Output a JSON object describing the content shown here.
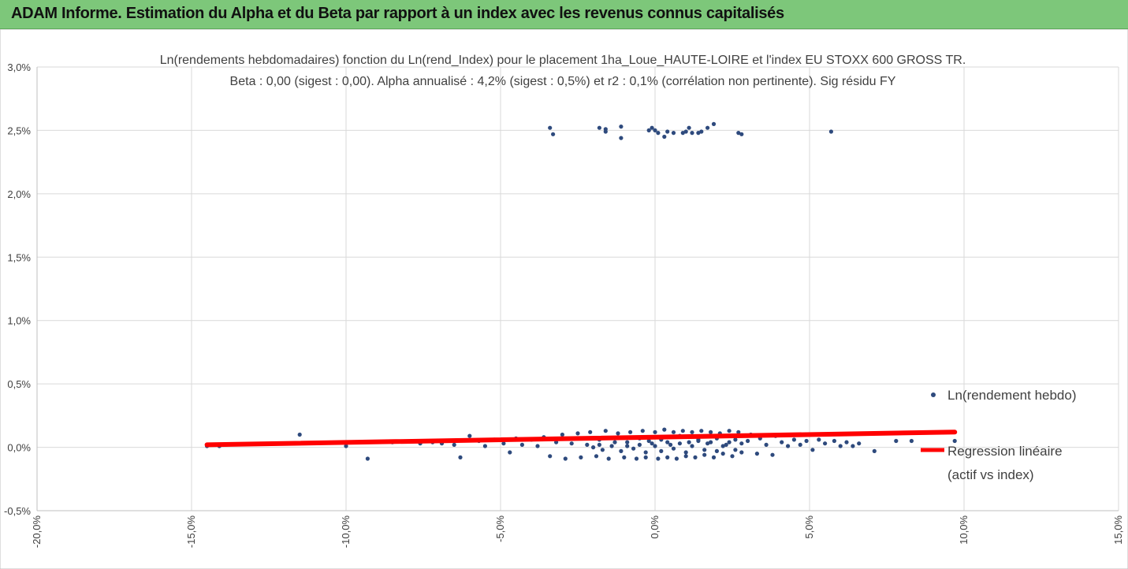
{
  "header": {
    "title": "ADAM Informe. Estimation du Alpha et du Beta par rapport à un index avec les revenus connus capitalisés"
  },
  "colors": {
    "header_bg": "#7dc77a",
    "points": "#2e4a7d",
    "regression": "#ff0000",
    "grid": "#d9d9d9"
  },
  "chart_data": {
    "type": "scatter",
    "title_line1": "Ln(rendements hebdomadaires) fonction du Ln(rend_Index) pour le placement 1ha_Loue_HAUTE-LOIRE et l'index EU STOXX 600 GROSS TR.",
    "title_line2": "Beta : 0,00 (sigest : 0,00). Alpha annualisé : 4,2% (sigest : 0,5%) et r2 : 0,1% (corrélation non pertinente). Sig résidu FY",
    "xlim": [
      -0.2,
      0.15
    ],
    "ylim": [
      -0.005,
      0.03
    ],
    "x_ticks": [
      "-20,0%",
      "-15,0%",
      "-10,0%",
      "-5,0%",
      "0,0%",
      "5,0%",
      "10,0%",
      "15,0%"
    ],
    "y_ticks": [
      "3,0%",
      "2,5%",
      "2,0%",
      "1,5%",
      "1,0%",
      "0,5%",
      "0,0%",
      "-0,5%"
    ],
    "grid": true,
    "legend_position": "right",
    "legend": [
      {
        "label": "Ln(rendement hebdo)",
        "type": "marker"
      },
      {
        "label_line1": "Regression linéaire",
        "label_line2": "(actif vs index)",
        "type": "line"
      }
    ],
    "regression": {
      "x": [
        -0.145,
        0.097
      ],
      "y": [
        0.0002,
        0.0012
      ]
    },
    "series": [
      {
        "name": "Ln(rendement hebdo)",
        "points": [
          [
            -0.034,
            0.0252
          ],
          [
            -0.033,
            0.0247
          ],
          [
            -0.018,
            0.0252
          ],
          [
            -0.016,
            0.0249
          ],
          [
            -0.016,
            0.0251
          ],
          [
            -0.011,
            0.0253
          ],
          [
            -0.011,
            0.0244
          ],
          [
            -0.002,
            0.025
          ],
          [
            -0.001,
            0.0252
          ],
          [
            0.0,
            0.025
          ],
          [
            0.001,
            0.0248
          ],
          [
            0.003,
            0.0245
          ],
          [
            0.004,
            0.0249
          ],
          [
            0.006,
            0.0248
          ],
          [
            0.009,
            0.0248
          ],
          [
            0.01,
            0.0249
          ],
          [
            0.011,
            0.0252
          ],
          [
            0.012,
            0.0248
          ],
          [
            0.014,
            0.0248
          ],
          [
            0.015,
            0.0249
          ],
          [
            0.017,
            0.0252
          ],
          [
            0.019,
            0.0255
          ],
          [
            0.027,
            0.0248
          ],
          [
            0.028,
            0.0247
          ],
          [
            0.057,
            0.0249
          ],
          [
            -0.145,
            0.0001
          ],
          [
            -0.141,
            0.0001
          ],
          [
            -0.115,
            0.001
          ],
          [
            -0.1,
            0.0001
          ],
          [
            -0.093,
            -0.0009
          ],
          [
            -0.085,
            0.0004
          ],
          [
            -0.076,
            0.0003
          ],
          [
            -0.072,
            0.0004
          ],
          [
            -0.069,
            0.0003
          ],
          [
            -0.066,
            0.0005
          ],
          [
            -0.065,
            0.0002
          ],
          [
            -0.063,
            -0.0008
          ],
          [
            -0.06,
            0.0009
          ],
          [
            -0.057,
            0.0005
          ],
          [
            -0.055,
            0.0001
          ],
          [
            -0.052,
            0.0006
          ],
          [
            -0.049,
            0.0003
          ],
          [
            -0.047,
            -0.0004
          ],
          [
            -0.045,
            0.0007
          ],
          [
            -0.043,
            0.0002
          ],
          [
            -0.04,
            0.0006
          ],
          [
            -0.038,
            0.0001
          ],
          [
            -0.036,
            0.0008
          ],
          [
            -0.034,
            -0.0007
          ],
          [
            -0.032,
            0.0004
          ],
          [
            -0.03,
            0.001
          ],
          [
            -0.029,
            -0.0009
          ],
          [
            -0.027,
            0.0003
          ],
          [
            -0.025,
            0.0011
          ],
          [
            -0.024,
            -0.0008
          ],
          [
            -0.022,
            0.0002
          ],
          [
            -0.021,
            0.0012
          ],
          [
            -0.019,
            -0.0007
          ],
          [
            -0.018,
            0.0006
          ],
          [
            -0.016,
            0.0013
          ],
          [
            -0.015,
            -0.0009
          ],
          [
            -0.013,
            0.0004
          ],
          [
            -0.012,
            0.0011
          ],
          [
            -0.01,
            -0.0008
          ],
          [
            -0.009,
            0.0001
          ],
          [
            -0.008,
            0.0012
          ],
          [
            -0.006,
            -0.0009
          ],
          [
            -0.005,
            0.0007
          ],
          [
            -0.004,
            0.0013
          ],
          [
            -0.003,
            -0.0008
          ],
          [
            -0.001,
            0.0003
          ],
          [
            0.0,
            0.0012
          ],
          [
            0.001,
            -0.0009
          ],
          [
            0.002,
            0.0006
          ],
          [
            0.003,
            0.0014
          ],
          [
            0.004,
            -0.0008
          ],
          [
            0.005,
            0.0002
          ],
          [
            0.006,
            0.0012
          ],
          [
            0.007,
            -0.0009
          ],
          [
            0.008,
            0.0009
          ],
          [
            0.009,
            0.0013
          ],
          [
            0.01,
            -0.0007
          ],
          [
            0.011,
            0.0004
          ],
          [
            0.012,
            0.0012
          ],
          [
            0.013,
            -0.0008
          ],
          [
            0.014,
            0.0005
          ],
          [
            0.015,
            0.0013
          ],
          [
            0.016,
            -0.0006
          ],
          [
            0.017,
            0.0003
          ],
          [
            0.018,
            0.0012
          ],
          [
            0.019,
            -0.0008
          ],
          [
            0.02,
            0.0007
          ],
          [
            0.021,
            0.0011
          ],
          [
            0.022,
            -0.0005
          ],
          [
            0.023,
            0.0002
          ],
          [
            0.024,
            0.0013
          ],
          [
            0.025,
            -0.0007
          ],
          [
            0.026,
            0.0006
          ],
          [
            0.027,
            0.0012
          ],
          [
            0.028,
            -0.0004
          ],
          [
            0.03,
            0.0005
          ],
          [
            0.031,
            0.001
          ],
          [
            0.033,
            -0.0005
          ],
          [
            0.034,
            0.0007
          ],
          [
            0.036,
            0.0002
          ],
          [
            0.038,
            -0.0006
          ],
          [
            0.039,
            0.0009
          ],
          [
            0.041,
            0.0004
          ],
          [
            0.043,
            0.0001
          ],
          [
            0.045,
            0.0006
          ],
          [
            0.047,
            0.0002
          ],
          [
            0.049,
            0.0005
          ],
          [
            0.051,
            -0.0002
          ],
          [
            0.053,
            0.0006
          ],
          [
            0.055,
            0.0003
          ],
          [
            0.058,
            0.0005
          ],
          [
            0.06,
            0.0001
          ],
          [
            0.062,
            0.0004
          ],
          [
            0.064,
            0.0001
          ],
          [
            0.066,
            0.0003
          ],
          [
            0.071,
            -0.0003
          ],
          [
            0.078,
            0.0005
          ],
          [
            0.083,
            0.0005
          ],
          [
            0.097,
            0.0005
          ],
          [
            -0.02,
            0.0
          ],
          [
            -0.018,
            0.0002
          ],
          [
            -0.017,
            -0.0002
          ],
          [
            -0.014,
            0.0001
          ],
          [
            -0.011,
            -0.0003
          ],
          [
            -0.009,
            0.0004
          ],
          [
            -0.007,
            -0.0001
          ],
          [
            -0.005,
            0.0002
          ],
          [
            -0.003,
            -0.0004
          ],
          [
            -0.002,
            0.0005
          ],
          [
            0.0,
            0.0001
          ],
          [
            0.002,
            -0.0003
          ],
          [
            0.004,
            0.0004
          ],
          [
            0.006,
            -0.0001
          ],
          [
            0.008,
            0.0003
          ],
          [
            0.01,
            -0.0004
          ],
          [
            0.012,
            0.0001
          ],
          [
            0.014,
            0.0006
          ],
          [
            0.016,
            -0.0002
          ],
          [
            0.018,
            0.0004
          ],
          [
            0.02,
            -0.0003
          ],
          [
            0.022,
            0.0001
          ],
          [
            0.024,
            0.0004
          ],
          [
            0.026,
            -0.0002
          ],
          [
            0.028,
            0.0003
          ]
        ]
      }
    ]
  }
}
